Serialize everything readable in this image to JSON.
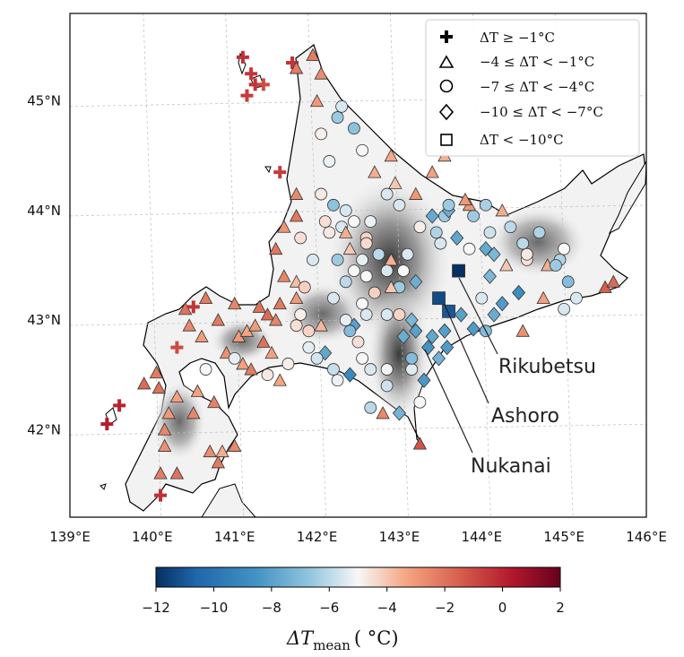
{
  "map": {
    "lon_ticks": [
      "139°E",
      "140°E",
      "141°E",
      "142°E",
      "143°E",
      "144°E",
      "145°E",
      "146°E"
    ],
    "lat_ticks": [
      "42°N",
      "43°N",
      "44°N",
      "45°N"
    ],
    "lon_range": [
      139,
      146
    ],
    "lat_range": [
      41.2,
      45.8
    ],
    "background": "grayscale terrain relief of Hokkaido",
    "gridlines": "dashed"
  },
  "legend": {
    "position": "top-right",
    "items": [
      {
        "marker": "plus",
        "label": "ΔT ≥ −1°C"
      },
      {
        "marker": "triangle",
        "label": "−4 ≤ ΔT < −1°C"
      },
      {
        "marker": "circle",
        "label": "−7 ≤ ΔT < −4°C"
      },
      {
        "marker": "diamond",
        "label": "−10 ≤ ΔT < −7°C"
      },
      {
        "marker": "square",
        "label": "ΔT < −10°C"
      }
    ]
  },
  "annotations": [
    {
      "label": "Rikubetsu",
      "lon": 143.72,
      "lat": 43.45
    },
    {
      "label": "Ashoro",
      "lon": 143.55,
      "lat": 43.08
    },
    {
      "label": "Nukanai",
      "lon": 143.3,
      "lat": 42.75
    }
  ],
  "colorbar": {
    "ticks": [
      "−12",
      "−10",
      "−8",
      "−6",
      "−4",
      "−2",
      "0",
      "2"
    ],
    "range": [
      -12,
      2
    ],
    "colormap": "RdBu_r",
    "label_main": "ΔT",
    "label_sub": "mean",
    "label_unit": "( °C)"
  },
  "chart_data": {
    "type": "scatter",
    "x_label": "longitude",
    "y_label": "latitude",
    "points": [
      [
        139.45,
        42.05,
        0.2
      ],
      [
        139.6,
        42.22,
        0.0
      ],
      [
        139.9,
        42.42,
        -1.8
      ],
      [
        140.05,
        42.52,
        -2.2
      ],
      [
        140.08,
        42.38,
        -2.0
      ],
      [
        140.1,
        41.4,
        -0.3
      ],
      [
        140.1,
        41.6,
        -2.3
      ],
      [
        140.15,
        42.0,
        -2.5
      ],
      [
        140.2,
        42.15,
        -3.0
      ],
      [
        140.15,
        41.85,
        -2.8
      ],
      [
        140.3,
        41.6,
        -2.0
      ],
      [
        140.3,
        42.3,
        -3.2
      ],
      [
        140.3,
        42.75,
        -1.0
      ],
      [
        140.45,
        42.95,
        -2.6
      ],
      [
        140.4,
        43.1,
        -2.0
      ],
      [
        140.5,
        43.12,
        -0.4
      ],
      [
        140.6,
        42.85,
        -3.1
      ],
      [
        140.65,
        43.2,
        -2.2
      ],
      [
        140.55,
        42.35,
        -3.2
      ],
      [
        140.75,
        42.25,
        -2.4
      ],
      [
        140.7,
        41.8,
        -2.7
      ],
      [
        140.5,
        42.15,
        -2.5
      ],
      [
        140.8,
        41.7,
        -2.2
      ],
      [
        140.85,
        41.8,
        -3.5
      ],
      [
        141.0,
        41.85,
        -2.6
      ],
      [
        140.65,
        42.55,
        -5.0
      ],
      [
        140.8,
        43.0,
        -2.2
      ],
      [
        140.9,
        42.7,
        -2.8
      ],
      [
        141.0,
        42.65,
        -5.3
      ],
      [
        141.1,
        42.6,
        -3.2
      ],
      [
        141.05,
        42.85,
        -3.0
      ],
      [
        141.15,
        42.9,
        -3.3
      ],
      [
        141.2,
        42.55,
        -2.3
      ],
      [
        141.3,
        43.12,
        -2.0
      ],
      [
        141.25,
        42.95,
        -3.1
      ],
      [
        141.0,
        43.15,
        -2.5
      ],
      [
        141.4,
        43.05,
        -1.8
      ],
      [
        141.35,
        42.8,
        -2.0
      ],
      [
        141.45,
        42.7,
        -3.2
      ],
      [
        141.4,
        42.5,
        -4.7
      ],
      [
        141.55,
        42.45,
        -3.3
      ],
      [
        141.65,
        42.6,
        -4.8
      ],
      [
        141.5,
        43.0,
        -2.5
      ],
      [
        141.55,
        43.15,
        -2.2
      ],
      [
        141.75,
        43.2,
        -3.0
      ],
      [
        141.75,
        43.35,
        -3.8
      ],
      [
        141.6,
        43.4,
        -2.5
      ],
      [
        141.5,
        43.65,
        -2.1
      ],
      [
        141.6,
        43.85,
        -2.9
      ],
      [
        141.55,
        44.35,
        -0.6
      ],
      [
        141.75,
        44.15,
        -2.6
      ],
      [
        141.75,
        43.95,
        -2.1
      ],
      [
        141.8,
        43.75,
        -4.5
      ],
      [
        141.95,
        43.55,
        -5.5
      ],
      [
        141.85,
        43.3,
        -4.2
      ],
      [
        141.8,
        43.05,
        -4.8
      ],
      [
        141.75,
        42.95,
        -4.5
      ],
      [
        141.9,
        42.75,
        -5.3
      ],
      [
        141.9,
        42.9,
        -4.3
      ],
      [
        142.05,
        42.95,
        -3.7
      ],
      [
        142.1,
        42.7,
        -7.8
      ],
      [
        142.2,
        42.55,
        -5.8
      ],
      [
        142.25,
        42.45,
        -5.2
      ],
      [
        142.0,
        42.65,
        -5.6
      ],
      [
        142.4,
        42.5,
        -9.0
      ],
      [
        142.45,
        42.95,
        -8.0
      ],
      [
        142.5,
        42.8,
        -4.5
      ],
      [
        142.35,
        43.0,
        -5.3
      ],
      [
        142.55,
        42.65,
        -5.0
      ],
      [
        142.65,
        42.55,
        -5.5
      ],
      [
        142.85,
        42.55,
        -5.1
      ],
      [
        142.85,
        42.4,
        -5.7
      ],
      [
        142.65,
        42.2,
        -6.0
      ],
      [
        142.8,
        42.15,
        -2.6
      ],
      [
        143.0,
        42.15,
        -7.3
      ],
      [
        143.25,
        41.87,
        -1.2
      ],
      [
        143.25,
        42.25,
        -5.0
      ],
      [
        143.15,
        42.55,
        -5.4
      ],
      [
        143.3,
        42.45,
        -8.3
      ],
      [
        143.15,
        42.65,
        -7.0
      ],
      [
        143.05,
        42.85,
        -7.6
      ],
      [
        143.2,
        42.9,
        -8.0
      ],
      [
        143.15,
        43.0,
        -7.2
      ],
      [
        143.0,
        43.05,
        -4.3
      ],
      [
        142.85,
        43.05,
        -5.5
      ],
      [
        143.35,
        42.75,
        -8.5
      ],
      [
        143.48,
        42.65,
        -7.4
      ],
      [
        143.58,
        42.75,
        -8.2
      ],
      [
        143.55,
        42.9,
        -8.1
      ],
      [
        143.4,
        42.85,
        -7.8
      ],
      [
        143.6,
        43.08,
        -11.0
      ],
      [
        143.48,
        43.2,
        -11.3
      ],
      [
        143.72,
        43.45,
        -12.0
      ],
      [
        143.7,
        43.75,
        -7.8
      ],
      [
        143.85,
        43.65,
        -5.0
      ],
      [
        143.75,
        43.05,
        -8.0
      ],
      [
        143.9,
        42.92,
        -8.2
      ],
      [
        144.05,
        42.9,
        -7.0
      ],
      [
        144.0,
        43.2,
        -5.5
      ],
      [
        144.15,
        43.05,
        -7.6
      ],
      [
        144.1,
        43.4,
        -7.2
      ],
      [
        144.25,
        43.15,
        -8.2
      ],
      [
        144.3,
        43.5,
        -4.0
      ],
      [
        144.45,
        43.25,
        -8.8
      ],
      [
        144.55,
        43.55,
        -4.5
      ],
      [
        144.5,
        42.9,
        -2.8
      ],
      [
        144.35,
        43.85,
        -6.0
      ],
      [
        144.55,
        43.6,
        -4.7
      ],
      [
        144.75,
        43.2,
        -3.2
      ],
      [
        144.8,
        43.5,
        -3.5
      ],
      [
        144.95,
        43.55,
        -6.2
      ],
      [
        145.0,
        43.65,
        -5.0
      ],
      [
        145.05,
        43.35,
        -7.0
      ],
      [
        145.15,
        43.2,
        -5.5
      ],
      [
        145.5,
        43.3,
        -1.5
      ],
      [
        145.6,
        43.35,
        -1.8
      ],
      [
        143.0,
        43.3,
        -6.5
      ],
      [
        143.2,
        43.35,
        -7.5
      ],
      [
        143.05,
        43.45,
        -5.0
      ],
      [
        142.9,
        43.55,
        -3.5
      ],
      [
        143.1,
        43.6,
        -5.5
      ],
      [
        143.25,
        43.85,
        -4.8
      ],
      [
        143.4,
        43.95,
        -7.7
      ],
      [
        143.55,
        43.95,
        -6.5
      ],
      [
        143.45,
        43.8,
        -6.2
      ],
      [
        143.5,
        43.7,
        -5.5
      ],
      [
        143.6,
        44.0,
        -7.5
      ],
      [
        143.9,
        43.95,
        -6.5
      ],
      [
        144.1,
        43.8,
        -5.7
      ],
      [
        144.15,
        43.6,
        -7.2
      ],
      [
        144.05,
        43.65,
        -7.7
      ],
      [
        143.2,
        44.15,
        -3.0
      ],
      [
        143.0,
        44.05,
        -5.5
      ],
      [
        142.95,
        44.25,
        -4.0
      ],
      [
        142.7,
        44.35,
        -3.5
      ],
      [
        142.9,
        44.5,
        -3.4
      ],
      [
        142.55,
        44.55,
        -5.0
      ],
      [
        142.45,
        44.75,
        -6.8
      ],
      [
        142.25,
        44.85,
        -6.5
      ],
      [
        142.3,
        44.95,
        -5.5
      ],
      [
        142.05,
        44.7,
        -4.8
      ],
      [
        142.0,
        45.0,
        -3.0
      ],
      [
        142.05,
        45.25,
        -2.7
      ],
      [
        141.95,
        45.42,
        -2.3
      ],
      [
        141.7,
        45.35,
        -0.4
      ],
      [
        141.2,
        45.25,
        -0.5
      ],
      [
        141.15,
        45.05,
        -0.6
      ],
      [
        141.1,
        45.4,
        -0.3
      ],
      [
        141.25,
        45.15,
        -0.4
      ],
      [
        141.35,
        45.15,
        -1.0
      ],
      [
        141.75,
        45.3,
        -2.2
      ],
      [
        142.15,
        44.45,
        -5.2
      ],
      [
        142.05,
        44.15,
        -4.7
      ],
      [
        142.1,
        43.9,
        -4.5
      ],
      [
        142.3,
        43.85,
        -5.5
      ],
      [
        142.4,
        43.65,
        -4.0
      ],
      [
        142.55,
        43.55,
        -5.3
      ],
      [
        142.6,
        43.4,
        -5.0
      ],
      [
        142.7,
        43.25,
        -4.2
      ],
      [
        142.35,
        43.35,
        -6.0
      ],
      [
        142.2,
        43.2,
        -5.5
      ],
      [
        142.2,
        44.05,
        -6.8
      ],
      [
        142.35,
        44.0,
        -5.5
      ],
      [
        142.45,
        43.9,
        -5.0
      ],
      [
        142.6,
        43.75,
        -4.3
      ],
      [
        142.65,
        43.9,
        -5.2
      ],
      [
        142.55,
        43.15,
        -5.0
      ],
      [
        142.75,
        43.6,
        -6.0
      ],
      [
        142.85,
        43.45,
        -5.5
      ],
      [
        142.25,
        43.55,
        -6.5
      ],
      [
        142.45,
        43.45,
        -5.0
      ],
      [
        142.15,
        43.8,
        -4.7
      ],
      [
        142.35,
        43.8,
        -3.5
      ],
      [
        142.6,
        43.7,
        -4.4
      ],
      [
        144.7,
        43.8,
        -6.2
      ],
      [
        144.9,
        43.5,
        -6.5
      ],
      [
        145.0,
        43.1,
        -5.5
      ],
      [
        143.6,
        44.05,
        -6.5
      ],
      [
        142.85,
        44.15,
        -5.5
      ],
      [
        143.4,
        44.35,
        -3.2
      ],
      [
        143.55,
        44.5,
        -3.5
      ],
      [
        143.85,
        44.05,
        -3.0
      ],
      [
        144.25,
        44.0,
        -3.5
      ],
      [
        144.5,
        43.7,
        -6.0
      ],
      [
        144.05,
        44.05,
        -6.3
      ],
      [
        143.8,
        44.1,
        -3.0
      ],
      [
        142.6,
        43.05,
        -5.5
      ],
      [
        142.9,
        43.3,
        -4.0
      ],
      [
        142.4,
        42.9,
        -7.0
      ]
    ]
  }
}
